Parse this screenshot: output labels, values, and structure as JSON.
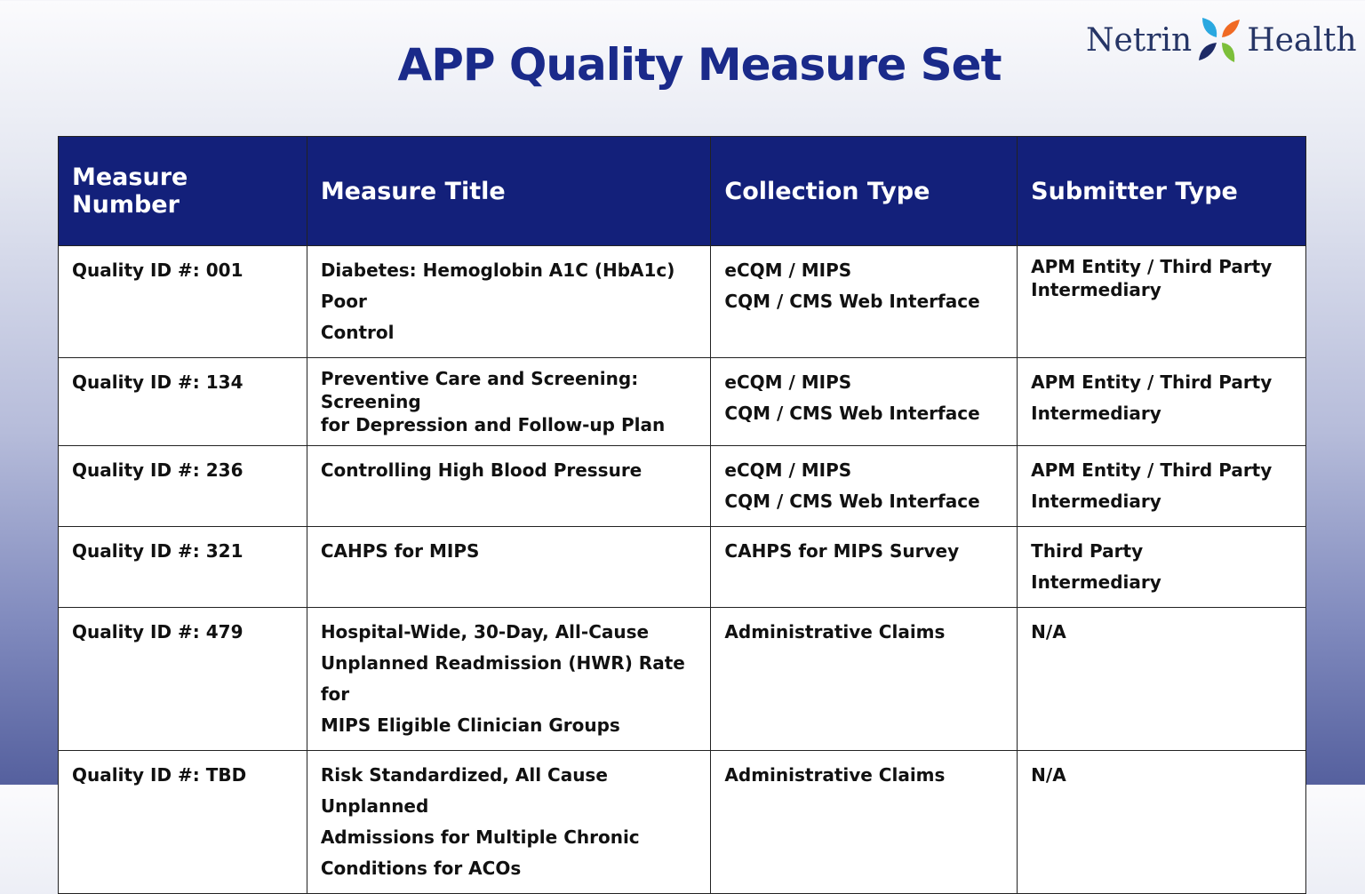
{
  "title": "APP Quality Measure Set",
  "logo": {
    "left": "Netrin",
    "right": "Health",
    "colors": [
      "#2aa8e0",
      "#f06a24",
      "#1d2a66",
      "#7cbf3a"
    ]
  },
  "headers": [
    "Measure Number",
    "Measure Title",
    "Collection Type",
    "Submitter Type"
  ],
  "rows": [
    {
      "number": "Quality ID #: 001",
      "title": [
        "Diabetes: Hemoglobin A1C (HbA1c) Poor",
        "Control"
      ],
      "collection": [
        "eCQM / MIPS",
        "CQM / CMS Web Interface"
      ],
      "submitter": [
        "APM Entity / Third Party",
        "Intermediary"
      ]
    },
    {
      "number": "Quality ID #: 134",
      "title": [
        "Preventive Care and Screening: Screening",
        "for Depression and Follow-up Plan"
      ],
      "collection": [
        "eCQM / MIPS",
        "CQM / CMS Web Interface"
      ],
      "submitter": [
        "APM Entity / Third Party",
        "Intermediary"
      ]
    },
    {
      "number": "Quality ID #: 236",
      "title": [
        "Controlling High Blood Pressure"
      ],
      "collection": [
        "eCQM / MIPS",
        "CQM / CMS Web Interface"
      ],
      "submitter": [
        "APM Entity / Third Party",
        "Intermediary"
      ]
    },
    {
      "number": "Quality ID #: 321",
      "title": [
        "CAHPS for MIPS"
      ],
      "collection": [
        "CAHPS for MIPS Survey"
      ],
      "submitter": [
        "Third Party",
        "Intermediary"
      ]
    },
    {
      "number": "Quality ID #: 479",
      "title": [
        "Hospital-Wide, 30-Day, All-Cause",
        "Unplanned Readmission (HWR) Rate for",
        "MIPS Eligible Clinician Groups"
      ],
      "collection": [
        "Administrative Claims"
      ],
      "submitter": [
        "N/A"
      ]
    },
    {
      "number": "Quality ID #: TBD",
      "title": [
        "Risk Standardized, All Cause Unplanned",
        "Admissions for Multiple Chronic",
        "Conditions for ACOs"
      ],
      "collection": [
        "Administrative Claims"
      ],
      "submitter": [
        "N/A"
      ]
    }
  ]
}
